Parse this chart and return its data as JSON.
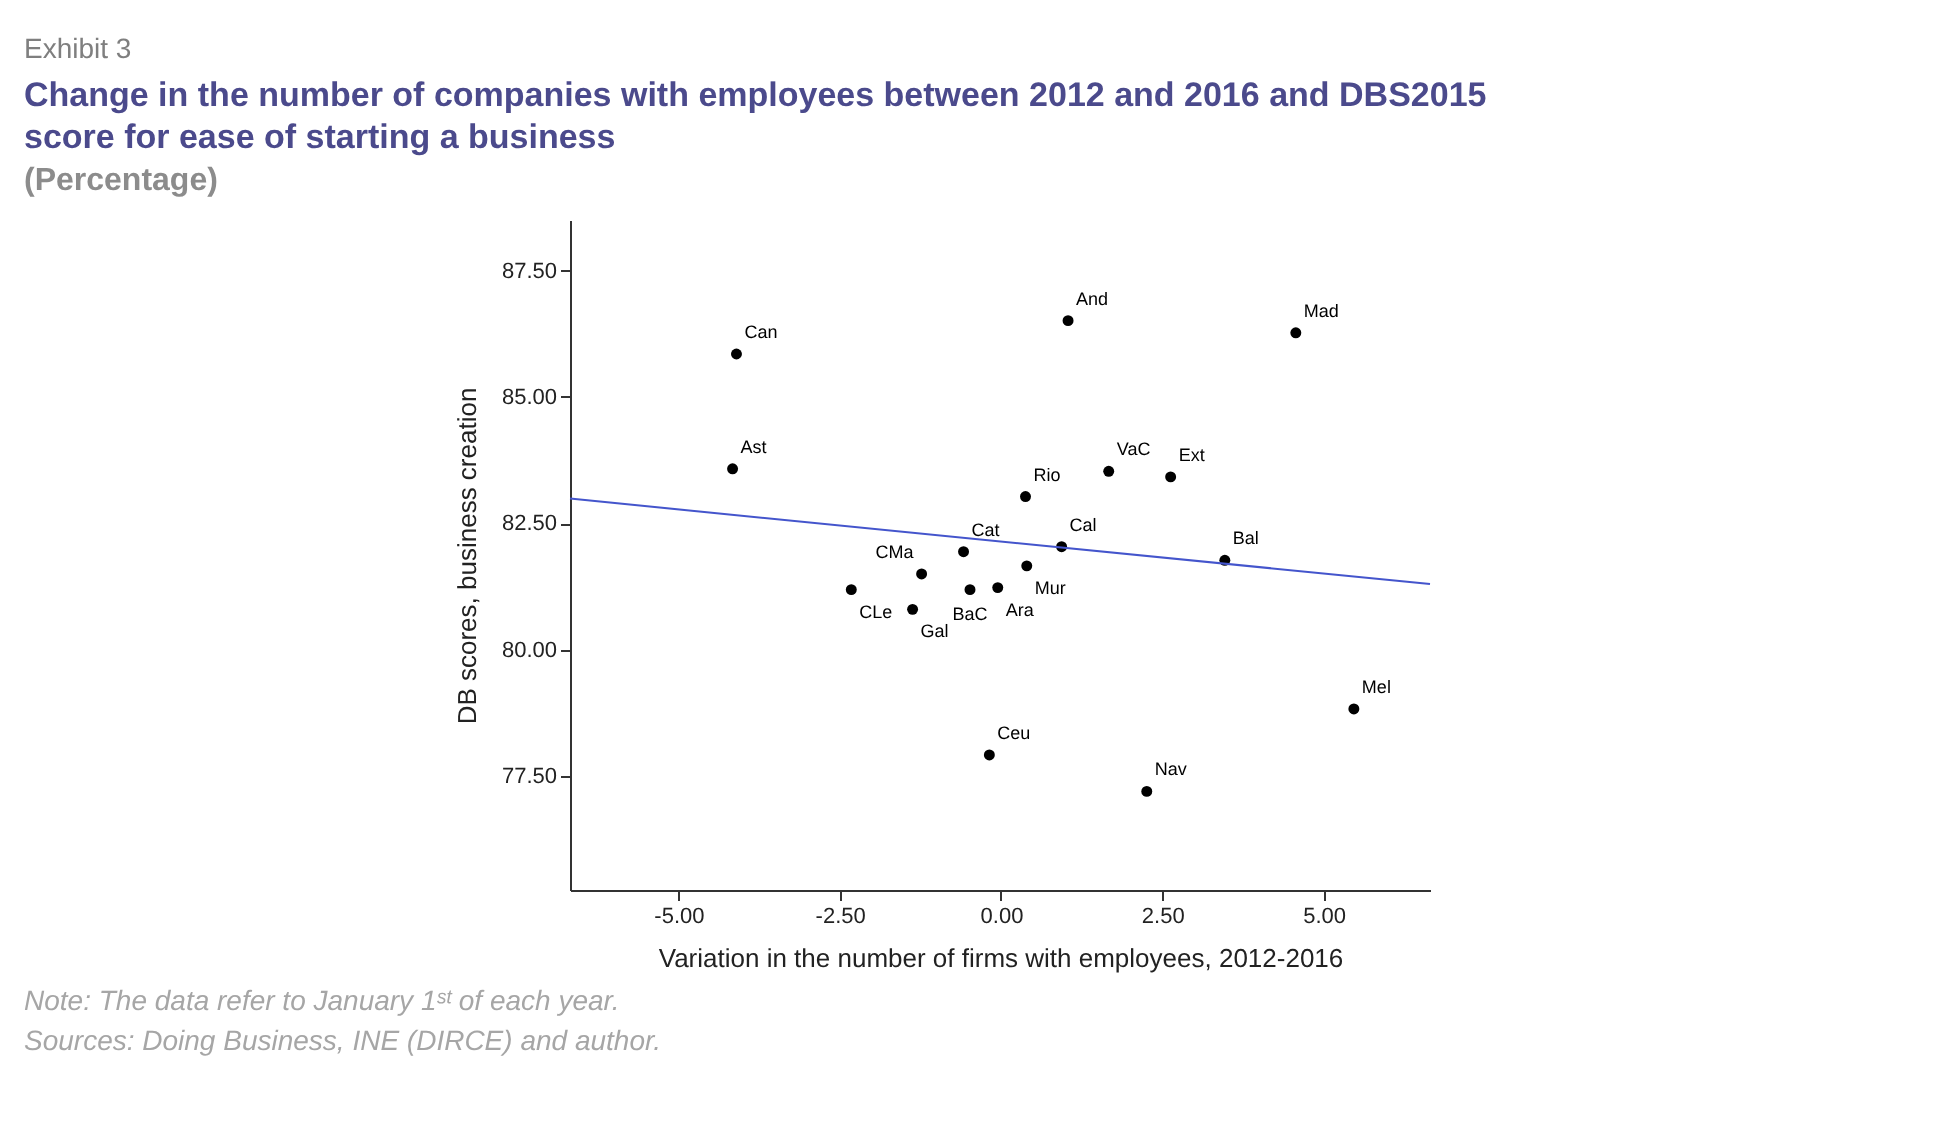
{
  "chart_data": {
    "type": "scatter",
    "title": "Change in the number of companies with employees between 2012 and 2016 and DBS2015 score for ease of starting a business",
    "subtitle": "(Percentage)",
    "xlabel": "Variation in the number of firms with employees, 2012-2016",
    "ylabel": "DB scores, business creation",
    "xlim": [
      -6.68,
      6.65
    ],
    "ylim": [
      75.25,
      88.5
    ],
    "xticks": [
      {
        "value": -5,
        "label": "-5.00"
      },
      {
        "value": -2.5,
        "label": "-2.50"
      },
      {
        "value": 0,
        "label": "0.00"
      },
      {
        "value": 2.5,
        "label": "2.50"
      },
      {
        "value": 5,
        "label": "5.00"
      }
    ],
    "yticks": [
      {
        "value": 77.5,
        "label": "77.50"
      },
      {
        "value": 80,
        "label": "80.00"
      },
      {
        "value": 82.5,
        "label": "82.50"
      },
      {
        "value": 85,
        "label": "85.00"
      },
      {
        "value": 87.5,
        "label": "87.50"
      }
    ],
    "grid": false,
    "series": [
      {
        "type": "scatter",
        "color": "#000000",
        "marker": "circle",
        "x": [
          -4.1,
          -4.16,
          -1.23,
          -2.32,
          -1.37,
          1.04,
          4.57,
          1.67,
          2.63,
          0.38,
          -0.58,
          0.94,
          3.47,
          0.4,
          -0.48,
          -0.05,
          5.47,
          -0.18,
          2.26
        ],
        "values": [
          85.85,
          83.58,
          81.5,
          81.19,
          80.8,
          86.51,
          86.27,
          83.53,
          83.42,
          83.03,
          81.94,
          82.04,
          81.77,
          81.66,
          81.19,
          81.23,
          78.83,
          77.92,
          77.2
        ]
      },
      {
        "type": "line",
        "color": "#4455cc",
        "x": [
          -6.68,
          6.65
        ],
        "values": [
          82.99,
          81.3
        ]
      }
    ],
    "annotations": [
      "Exhibit 3",
      {
        "text": "Can",
        "x": -4.1,
        "y": 85.85
      },
      {
        "text": "Ast",
        "x": -4.16,
        "y": 83.58
      },
      {
        "text": "CMa",
        "x": -1.23,
        "y": 81.5
      },
      {
        "text": "CLe",
        "x": -2.32,
        "y": 81.19
      },
      {
        "text": "Gal",
        "x": -1.37,
        "y": 80.8
      },
      {
        "text": "And",
        "x": 1.04,
        "y": 86.51
      },
      {
        "text": "Mad",
        "x": 4.57,
        "y": 86.27
      },
      {
        "text": "VaC",
        "x": 1.67,
        "y": 83.53
      },
      {
        "text": "Ext",
        "x": 2.63,
        "y": 83.42
      },
      {
        "text": "Rio",
        "x": 0.38,
        "y": 83.03
      },
      {
        "text": "Cat",
        "x": -0.58,
        "y": 81.94
      },
      {
        "text": "Cal",
        "x": 0.94,
        "y": 82.04
      },
      {
        "text": "Bal",
        "x": 3.47,
        "y": 81.77
      },
      {
        "text": "Mur",
        "x": 0.4,
        "y": 81.66
      },
      {
        "text": "BaC",
        "x": -0.48,
        "y": 81.19
      },
      {
        "text": "Ara",
        "x": -0.05,
        "y": 81.23
      },
      {
        "text": "Mel",
        "x": 5.47,
        "y": 78.83
      },
      {
        "text": "Ceu",
        "x": -0.18,
        "y": 77.92
      },
      {
        "text": "Nav",
        "x": 2.26,
        "y": 77.2
      },
      "Note: The data refer to January 1ˢᵗ of each year.",
      "Sources: Doing Business, INE (DIRCE) and author."
    ]
  }
}
